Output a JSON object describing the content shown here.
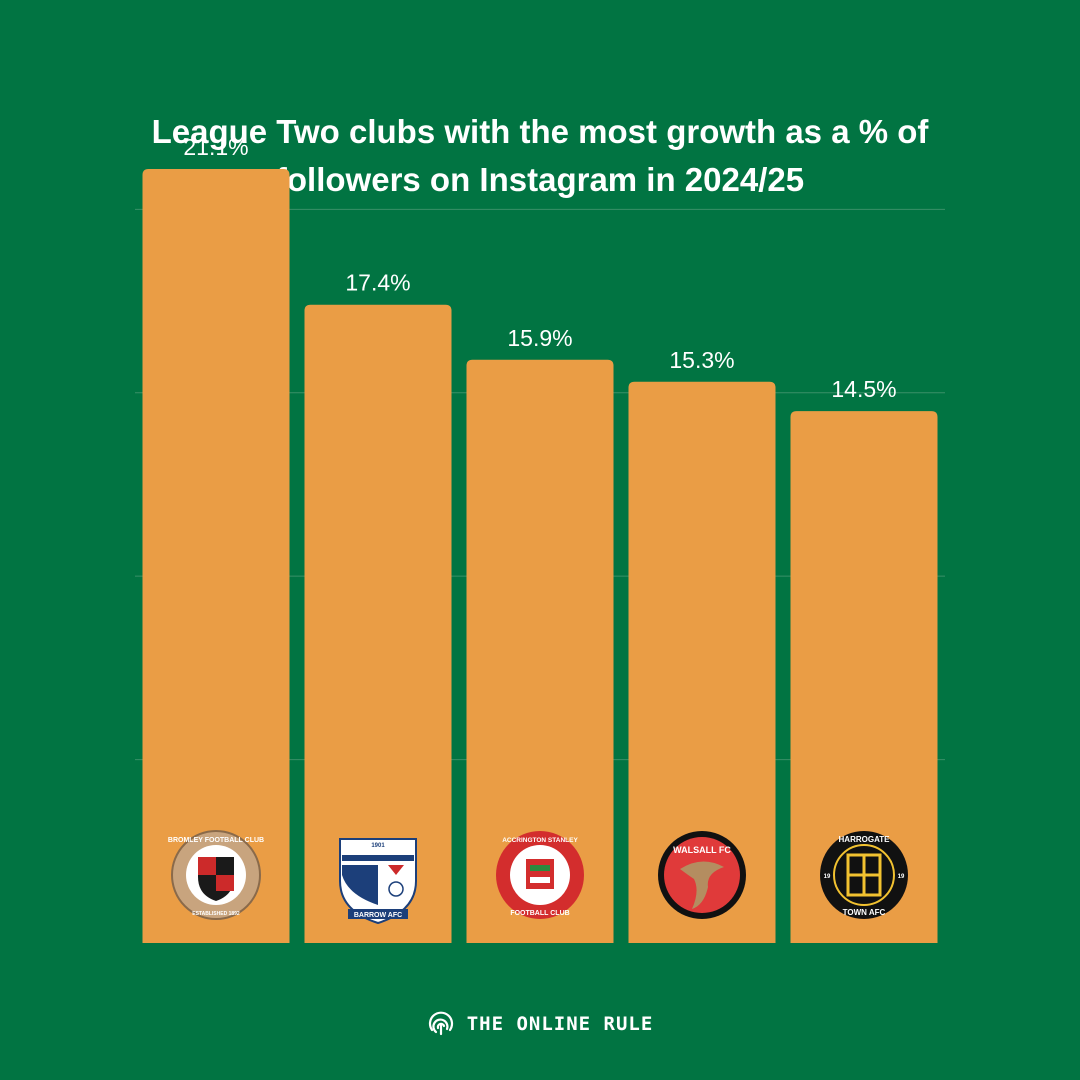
{
  "chart_data": {
    "type": "bar",
    "title_lines": [
      "League Two clubs with the most growth as a % of",
      "followers on Instagram in 2024/25"
    ],
    "categories": [
      "Bromley FC",
      "Barrow AFC",
      "Accrington Stanley",
      "Walsall FC",
      "Harrogate Town AFC"
    ],
    "values": [
      21.1,
      17.4,
      15.9,
      15.3,
      14.5
    ],
    "value_labels": [
      "21.1%",
      "17.4%",
      "15.9%",
      "15.3%",
      "14.5%"
    ],
    "ylim": [
      0,
      22
    ],
    "gridlines": [
      5,
      10,
      15,
      20
    ],
    "xlabel": "",
    "ylabel": "",
    "badges": [
      {
        "name": "bromley",
        "top": "BROMLEY FOOTBALL CLUB",
        "bottom": "ESTABLISHED 1892"
      },
      {
        "name": "barrow",
        "top": "1901",
        "bottom": "BARROW AFC"
      },
      {
        "name": "accrington",
        "top": "ACCRINGTON STANLEY",
        "bottom": "FOOTBALL CLUB"
      },
      {
        "name": "walsall",
        "top": "WALSALL FC",
        "bottom": ""
      },
      {
        "name": "harrogate",
        "top": "HARROGATE",
        "bottom": "TOWN AFC",
        "left": "19",
        "right": "19"
      }
    ]
  },
  "colors": {
    "background": "#017442",
    "bar": "#EA9D45",
    "grid": "#3a9068",
    "text": "#FFFFFF"
  },
  "footer": {
    "brand": "THE ONLINE RULE",
    "icon": "fingerprint-icon"
  }
}
